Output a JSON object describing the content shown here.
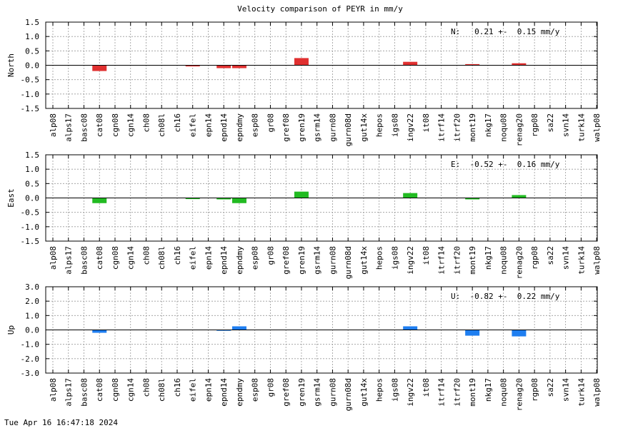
{
  "title": "Velocity comparison of PEYR in mm/y",
  "footer": "Tue Apr 16 16:47:18 2024",
  "chart_data": [
    {
      "type": "bar",
      "ylabel": "North",
      "annotation": "N:   0.21 +-  0.15 mm/y",
      "ylim": [
        -1.5,
        1.5
      ],
      "yticks": [
        "-1.5",
        "-1.0",
        "-0.5",
        "0.0",
        "0.5",
        "1.0",
        "1.5"
      ],
      "color": "#e03030",
      "categories": [
        "alp08",
        "alps17",
        "basc08",
        "cat08",
        "cgn08",
        "cgn14",
        "ch08",
        "ch08l",
        "ch16",
        "eifel",
        "epn14",
        "epnd14",
        "epndmy",
        "esp08",
        "gr08",
        "gref08",
        "gren19",
        "gsrm14",
        "gurn08",
        "gurn08d",
        "gut14x",
        "hepos",
        "igs08",
        "ingv22",
        "it08",
        "itrf14",
        "itrf20",
        "mont19",
        "nkg17",
        "noqu08",
        "renag20",
        "rgp08",
        "sa22",
        "svn14",
        "turk14",
        "walp08"
      ],
      "values": [
        null,
        null,
        null,
        -0.2,
        null,
        null,
        null,
        null,
        null,
        -0.04,
        null,
        -0.1,
        -0.1,
        null,
        null,
        null,
        0.25,
        null,
        null,
        null,
        null,
        null,
        null,
        0.12,
        null,
        null,
        null,
        0.04,
        null,
        null,
        0.07,
        null,
        null,
        null,
        null,
        null
      ]
    },
    {
      "type": "bar",
      "ylabel": "East",
      "annotation": "E:  -0.52 +-  0.16 mm/y",
      "ylim": [
        -1.5,
        1.5
      ],
      "yticks": [
        "-1.5",
        "-1.0",
        "-0.5",
        "0.0",
        "0.5",
        "1.0",
        "1.5"
      ],
      "color": "#22bb22",
      "categories": [
        "alp08",
        "alps17",
        "basc08",
        "cat08",
        "cgn08",
        "cgn14",
        "ch08",
        "ch08l",
        "ch16",
        "eifel",
        "epn14",
        "epnd14",
        "epndmy",
        "esp08",
        "gr08",
        "gref08",
        "gren19",
        "gsrm14",
        "gurn08",
        "gurn08d",
        "gut14x",
        "hepos",
        "igs08",
        "ingv22",
        "it08",
        "itrf14",
        "itrf20",
        "mont19",
        "nkg17",
        "noqu08",
        "renag20",
        "rgp08",
        "sa22",
        "svn14",
        "turk14",
        "walp08"
      ],
      "values": [
        null,
        null,
        null,
        -0.18,
        null,
        null,
        null,
        null,
        null,
        -0.04,
        null,
        -0.05,
        -0.18,
        null,
        null,
        null,
        0.22,
        null,
        null,
        null,
        null,
        null,
        null,
        0.17,
        null,
        null,
        null,
        -0.05,
        null,
        null,
        0.1,
        null,
        null,
        null,
        null,
        null
      ]
    },
    {
      "type": "bar",
      "ylabel": "Up",
      "annotation": "U:  -0.82 +-  0.22 mm/y",
      "ylim": [
        -3.0,
        3.0
      ],
      "yticks": [
        "-3.0",
        "-2.0",
        "-1.0",
        "0.0",
        "1.0",
        "2.0",
        "3.0"
      ],
      "color": "#1e7ef0",
      "categories": [
        "alp08",
        "alps17",
        "basc08",
        "cat08",
        "cgn08",
        "cgn14",
        "ch08",
        "ch08l",
        "ch16",
        "eifel",
        "epn14",
        "epnd14",
        "epndmy",
        "esp08",
        "gr08",
        "gref08",
        "gren19",
        "gsrm14",
        "gurn08",
        "gurn08d",
        "gut14x",
        "hepos",
        "igs08",
        "ingv22",
        "it08",
        "itrf14",
        "itrf20",
        "mont19",
        "nkg17",
        "noqu08",
        "renag20",
        "rgp08",
        "sa22",
        "svn14",
        "turk14",
        "walp08"
      ],
      "values": [
        null,
        null,
        null,
        -0.2,
        null,
        null,
        null,
        null,
        null,
        null,
        null,
        -0.06,
        0.25,
        null,
        null,
        null,
        null,
        null,
        null,
        null,
        null,
        null,
        null,
        0.25,
        null,
        null,
        null,
        -0.4,
        null,
        null,
        -0.45,
        null,
        null,
        null,
        null,
        null
      ]
    }
  ]
}
